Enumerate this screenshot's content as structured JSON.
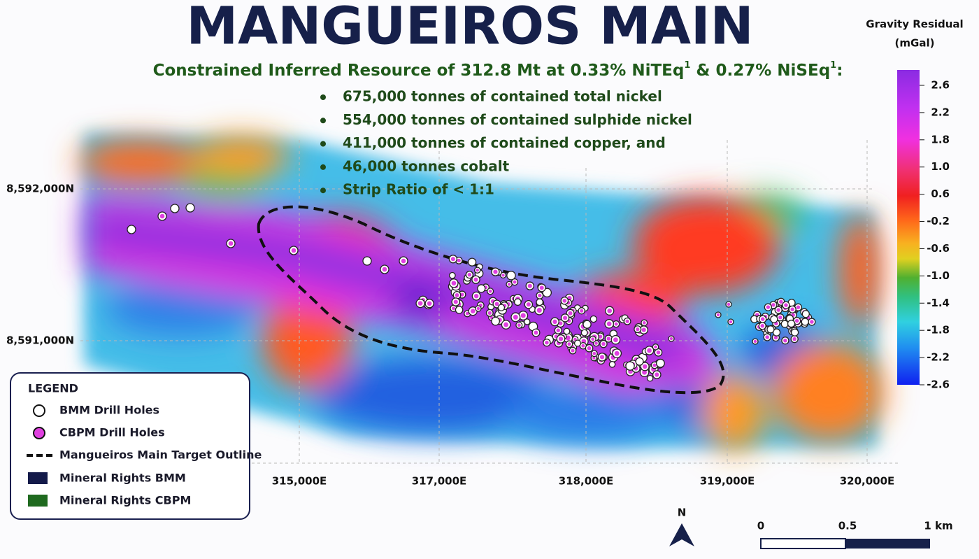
{
  "header": {
    "title": "MANGUEIROS MAIN",
    "subtitle": {
      "part1": "Constrained Inferred Resource of 312.8 Mt at 0.33% NiTEq",
      "sup1": "1",
      "part2": " & 0.27% NiSEq",
      "sup2": "1",
      "part3": ":"
    },
    "bullets": [
      "675,000 tonnes of contained total nickel",
      "554,000 tonnes of contained sulphide nickel",
      "411,000 tonnes of contained copper, and",
      "46,000 tonnes cobalt",
      "Strip Ratio of < 1:1"
    ]
  },
  "map": {
    "northings": [
      "8,592,000N",
      "8,591,000N"
    ],
    "eastings": [
      "315,000E",
      "317,000E",
      "318,000E",
      "319,000E",
      "320,000E"
    ],
    "north_arrow": "N",
    "scale_bar": [
      "0",
      "0.5",
      "1 km"
    ]
  },
  "colorbar": {
    "title": "Gravity Residual",
    "unit": "(mGal)",
    "labels": [
      "2.6",
      "2.2",
      "1.8",
      "1.0",
      "0.6",
      "-0.2",
      "-0.6",
      "-1.0",
      "-1.4",
      "-1.8",
      "-2.2",
      "-2.6"
    ]
  },
  "legend": {
    "title": "LEGEND",
    "items": [
      "BMM Drill Holes",
      "CBPM Drill Holes",
      "Mangueiros Main Target Outline",
      "Mineral Rights BMM",
      "Mineral Rights CBPM"
    ]
  }
}
